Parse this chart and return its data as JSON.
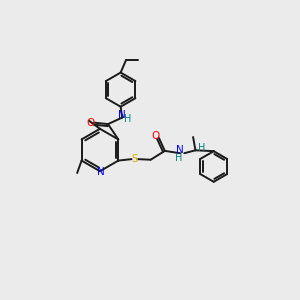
{
  "background_color": "#ebebeb",
  "bond_color": "#1a1a1a",
  "atom_colors": {
    "N": "#0000ff",
    "O": "#ff0000",
    "S": "#ccaa00",
    "H": "#008080",
    "C": "#1a1a1a"
  },
  "figsize": [
    3.0,
    3.0
  ],
  "dpi": 100
}
